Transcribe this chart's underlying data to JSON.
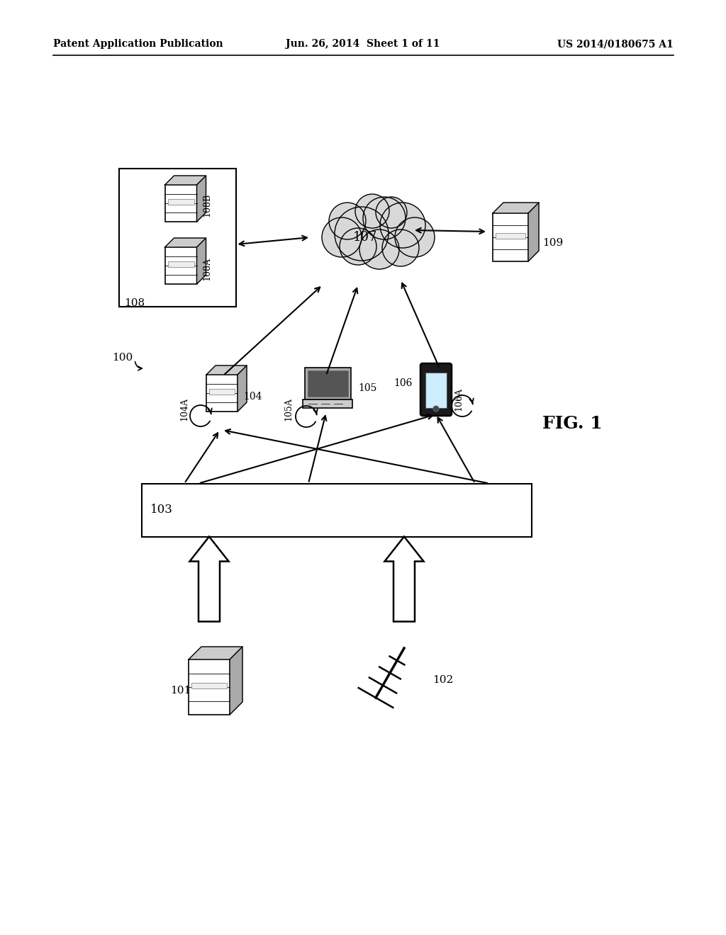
{
  "background_color": "#ffffff",
  "header_left": "Patent Application Publication",
  "header_mid": "Jun. 26, 2014  Sheet 1 of 11",
  "header_right": "US 2014/0180675 A1",
  "fig_label": "FIG. 1",
  "label_100": "100",
  "label_101": "101",
  "label_102": "102",
  "label_103": "103",
  "label_104": "104",
  "label_104A": "104A",
  "label_105": "105",
  "label_105A": "105A",
  "label_106": "106",
  "label_106A": "106A",
  "label_107": "107",
  "label_108": "108",
  "label_108A": "108A",
  "label_108B": "108B",
  "label_109": "109"
}
